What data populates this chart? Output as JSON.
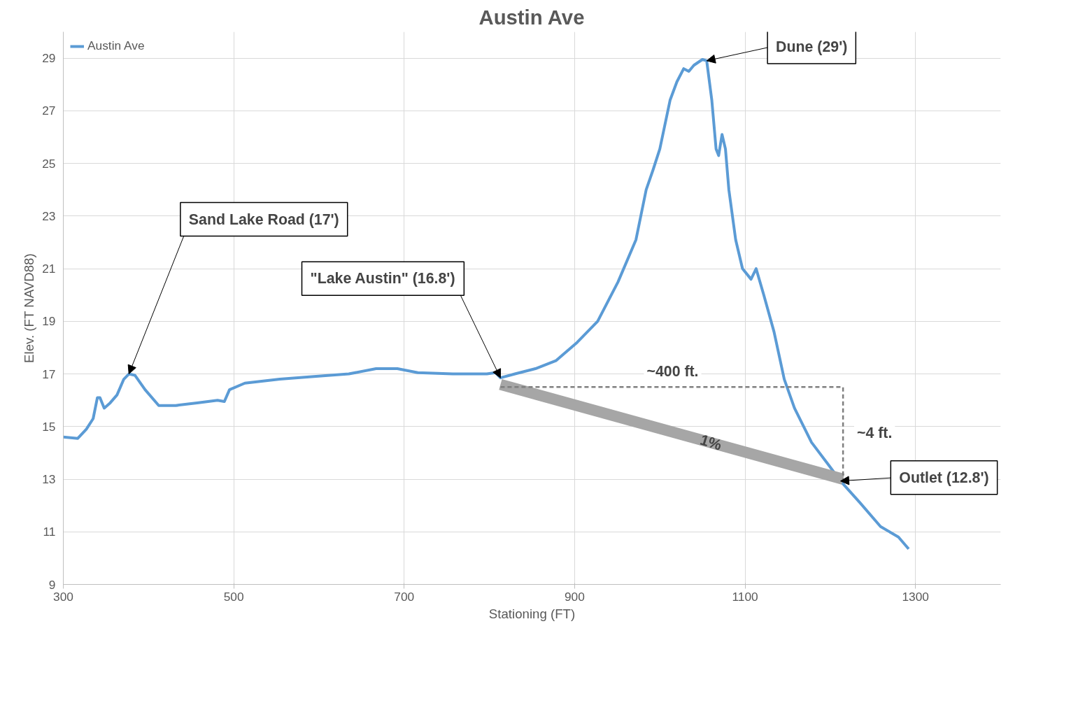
{
  "chart_data": {
    "type": "line",
    "title": "Austin Ave",
    "xlabel": "Stationing (FT)",
    "ylabel": "Elev. (FT NAVD88)",
    "xlim": [
      300,
      1400
    ],
    "xticks": [
      300,
      500,
      700,
      900,
      1100,
      1300
    ],
    "ylim": [
      9,
      30
    ],
    "yticks": [
      9,
      11,
      13,
      15,
      17,
      19,
      21,
      23,
      25,
      27,
      29
    ],
    "grid": true,
    "legend": "top left",
    "line_style": "solid",
    "series": [
      {
        "name": "Austin Ave",
        "color": "#5b9bd5",
        "x": [
          300,
          317,
          327,
          335,
          340,
          343,
          348,
          355,
          363,
          371,
          377,
          384,
          396,
          412,
          432,
          457,
          481,
          489,
          495,
          513,
          554,
          594,
          635,
          667,
          692,
          716,
          757,
          797,
          807,
          813,
          830,
          854,
          878,
          903,
          927,
          951,
          972,
          984,
          992,
          1000,
          1012,
          1020,
          1028,
          1034,
          1040,
          1050,
          1055,
          1061,
          1066,
          1069,
          1073,
          1077,
          1081,
          1089,
          1097,
          1107,
          1113,
          1122,
          1134,
          1146,
          1158,
          1178,
          1199,
          1212,
          1235,
          1259,
          1280,
          1292
        ],
        "values": [
          14.6,
          14.55,
          14.9,
          15.3,
          16.1,
          16.1,
          15.7,
          15.9,
          16.2,
          16.8,
          17.0,
          16.95,
          16.4,
          15.8,
          15.8,
          15.9,
          16.0,
          15.95,
          16.4,
          16.65,
          16.8,
          16.9,
          17.0,
          17.2,
          17.2,
          17.05,
          17.0,
          17.0,
          17.05,
          16.85,
          17.0,
          17.2,
          17.5,
          18.2,
          19.0,
          20.5,
          22.1,
          24.0,
          24.75,
          25.55,
          27.4,
          28.1,
          28.6,
          28.5,
          28.73,
          28.95,
          28.9,
          27.4,
          25.55,
          25.3,
          26.1,
          25.55,
          24.0,
          22.1,
          21.0,
          20.6,
          21.0,
          20.0,
          18.6,
          16.8,
          15.7,
          14.4,
          13.5,
          12.93,
          12.1,
          11.2,
          10.8,
          10.35
        ]
      },
      {
        "color": "#a6a6a6",
        "x": [
          813,
          1215
        ],
        "values": [
          16.6,
          13.0
        ]
      },
      {
        "color": "#7f7f7f",
        "line_style": "dashed",
        "x": [
          813,
          1215,
          1215
        ],
        "values": [
          16.5,
          16.5,
          13.0
        ]
      }
    ],
    "annotations": [
      {
        "text": "Sand Lake Road (17')",
        "x": 377,
        "y": 17.0
      },
      {
        "text": "\"Lake Austin\" (16.8')",
        "x": 813,
        "y": 16.85
      },
      {
        "text": "Dune (29')",
        "x": 1055,
        "y": 28.9
      },
      {
        "text": "Outlet (12.8')",
        "x": 1212,
        "y": 12.93
      },
      {
        "text": "~400 ft.",
        "x": 1015,
        "y": 16.5
      },
      {
        "text": "~4 ft.",
        "x": 1215,
        "y": 14.75
      },
      {
        "text": "1%",
        "x": 1060,
        "y": 14.39
      }
    ]
  }
}
